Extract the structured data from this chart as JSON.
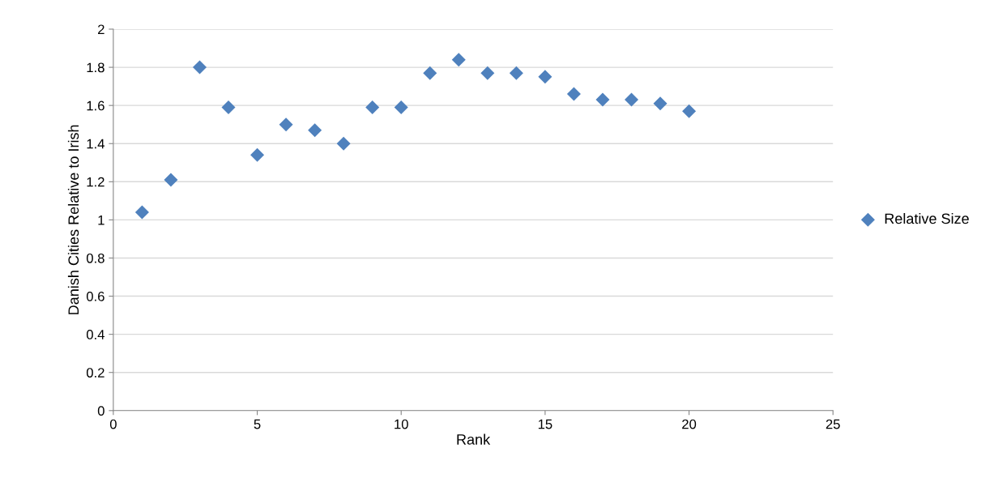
{
  "chart_data": {
    "type": "scatter",
    "xlabel": "Rank",
    "ylabel": "Danish Cities Relative to Irish",
    "x": [
      1,
      2,
      3,
      4,
      5,
      6,
      7,
      8,
      9,
      10,
      11,
      12,
      13,
      14,
      15,
      16,
      17,
      18,
      19,
      20
    ],
    "series": [
      {
        "name": "Relative Size",
        "color": "#4f81bd",
        "values": [
          1.04,
          1.21,
          1.8,
          1.59,
          1.34,
          1.5,
          1.47,
          1.4,
          1.59,
          1.59,
          1.77,
          1.84,
          1.77,
          1.77,
          1.75,
          1.66,
          1.63,
          1.63,
          1.61,
          1.57
        ]
      }
    ],
    "xlim": [
      0,
      25
    ],
    "xticks": [
      0,
      5,
      10,
      15,
      20,
      25
    ],
    "ylim": [
      0,
      2
    ],
    "yticks": [
      0,
      0.2,
      0.4,
      0.6,
      0.8,
      1,
      1.2,
      1.4,
      1.6,
      1.8,
      2
    ],
    "grid": "y",
    "legend": "right",
    "marker": "diamond"
  }
}
